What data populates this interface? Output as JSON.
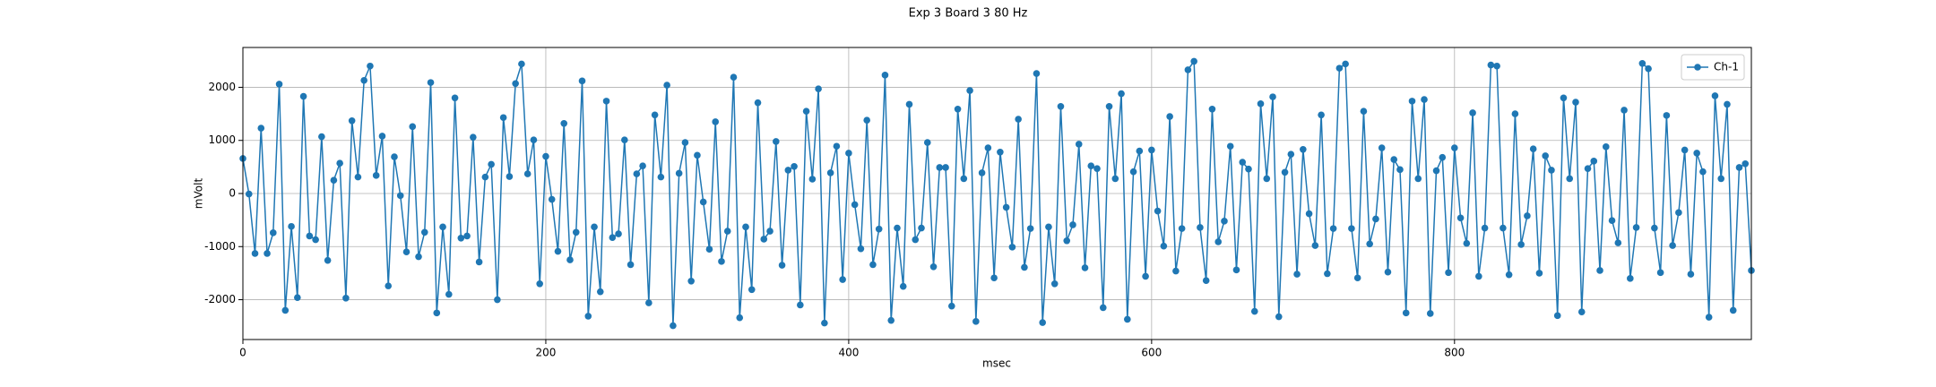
{
  "chart_data": {
    "type": "line",
    "title": "Exp 3 Board 3 80 Hz",
    "x_label": "msec",
    "y_label": "mVolt",
    "x": [
      0,
      4,
      8,
      12,
      16,
      20,
      24,
      28,
      32,
      36,
      40,
      44,
      48,
      52,
      56,
      60,
      64,
      68,
      72,
      76,
      80,
      84,
      88,
      92,
      96,
      100,
      104,
      108,
      112,
      116,
      120,
      124,
      128,
      132,
      136,
      140,
      144,
      148,
      152,
      156,
      160,
      164,
      168,
      172,
      176,
      180,
      184,
      188,
      192,
      196,
      200,
      204,
      208,
      212,
      216,
      220,
      224,
      228,
      232,
      236,
      240,
      244,
      248,
      252,
      256,
      260,
      264,
      268,
      272,
      276,
      280,
      284,
      288,
      292,
      296,
      300,
      304,
      308,
      312,
      316,
      320,
      324,
      328,
      332,
      336,
      340,
      344,
      348,
      352,
      356,
      360,
      364,
      368,
      372,
      376,
      380,
      384,
      388,
      392,
      396,
      400,
      404,
      408,
      412,
      416,
      420,
      424,
      428,
      432,
      436,
      440,
      444,
      448,
      452,
      456,
      460,
      464,
      468,
      472,
      476,
      480,
      484,
      488,
      492,
      496,
      500,
      504,
      508,
      512,
      516,
      520,
      524,
      528,
      532,
      536,
      540,
      544,
      548,
      552,
      556,
      560,
      564,
      568,
      572,
      576,
      580,
      584,
      588,
      592,
      596,
      600,
      604,
      608,
      612,
      616,
      620,
      624,
      628,
      632,
      636,
      640,
      644,
      648,
      652,
      656,
      660,
      664,
      668,
      672,
      676,
      680,
      684,
      688,
      692,
      696,
      700,
      704,
      708,
      712,
      716,
      720,
      724,
      728,
      732,
      736,
      740,
      744,
      748,
      752,
      756,
      760,
      764,
      768,
      772,
      776,
      780,
      784,
      788,
      792,
      796,
      800,
      804,
      808,
      812,
      816,
      820,
      824,
      828,
      832,
      836,
      840,
      844,
      848,
      852,
      856,
      860,
      864,
      868,
      872,
      876,
      880,
      884,
      888,
      892,
      896,
      900,
      904,
      908,
      912,
      916,
      920,
      924,
      928,
      932,
      936,
      940,
      944,
      948,
      952,
      956,
      960,
      964,
      968,
      972,
      976,
      980,
      984,
      988,
      992,
      996
    ],
    "series": [
      {
        "name": "Ch-1",
        "color": "#1f77b4",
        "values": [
          660,
          -10,
          -1130,
          1230,
          -1130,
          -740,
          2060,
          -2200,
          -620,
          -1960,
          1830,
          -800,
          -870,
          1070,
          -1260,
          250,
          570,
          -1970,
          1370,
          310,
          2130,
          2400,
          340,
          1080,
          -1740,
          690,
          -40,
          -1100,
          1260,
          -1190,
          -730,
          2090,
          -2250,
          -630,
          -1900,
          1800,
          -840,
          -800,
          1060,
          -1290,
          310,
          550,
          -2000,
          1430,
          320,
          2070,
          2440,
          370,
          1010,
          -1700,
          700,
          -110,
          -1090,
          1320,
          -1250,
          -730,
          2120,
          -2310,
          -630,
          -1850,
          1740,
          -830,
          -760,
          1010,
          -1340,
          370,
          520,
          -2060,
          1480,
          310,
          2040,
          -2490,
          380,
          960,
          -1650,
          720,
          -160,
          -1050,
          1350,
          -1280,
          -710,
          2190,
          -2340,
          -630,
          -1810,
          1710,
          -860,
          -710,
          980,
          -1350,
          440,
          510,
          -2100,
          1550,
          270,
          1970,
          -2440,
          390,
          890,
          -1620,
          760,
          -210,
          -1040,
          1380,
          -1340,
          -670,
          2230,
          -2390,
          -650,
          -1750,
          1680,
          -870,
          -650,
          960,
          -1380,
          490,
          490,
          -2120,
          1590,
          280,
          1940,
          -2410,
          390,
          860,
          -1590,
          780,
          -260,
          -1010,
          1400,
          -1390,
          -660,
          2260,
          -2430,
          -630,
          -1700,
          1640,
          -890,
          -590,
          930,
          -1400,
          520,
          470,
          -2150,
          1640,
          280,
          1880,
          -2370,
          410,
          800,
          -1560,
          820,
          -330,
          -990,
          1450,
          -1460,
          -660,
          2330,
          2490,
          -640,
          -1640,
          1590,
          -910,
          -520,
          890,
          -1440,
          590,
          460,
          -2220,
          1690,
          280,
          1820,
          -2320,
          400,
          740,
          -1520,
          830,
          -380,
          -980,
          1480,
          -1510,
          -660,
          2360,
          2440,
          -660,
          -1590,
          1550,
          -950,
          -480,
          860,
          -1480,
          640,
          450,
          -2250,
          1740,
          280,
          1770,
          -2260,
          430,
          680,
          -1490,
          860,
          -460,
          -940,
          1520,
          -1560,
          -650,
          2420,
          2400,
          -650,
          -1530,
          1500,
          -960,
          -420,
          840,
          -1500,
          710,
          440,
          -2300,
          1800,
          280,
          1720,
          -2230,
          470,
          610,
          -1450,
          880,
          -510,
          -930,
          1570,
          -1600,
          -640,
          2450,
          2350,
          -650,
          -1490,
          1470,
          -980,
          -360,
          820,
          -1520,
          760,
          410,
          -2330,
          1840,
          280,
          1680,
          -2200,
          490,
          560,
          -1450
        ]
      }
    ],
    "xlim": [
      0,
      996
    ],
    "ylim": [
      -2750,
      2750
    ],
    "xticks": [
      0,
      200,
      400,
      600,
      800
    ],
    "yticks": [
      -2000,
      -1000,
      0,
      1000,
      2000
    ],
    "grid": true,
    "legend": "upper right"
  }
}
